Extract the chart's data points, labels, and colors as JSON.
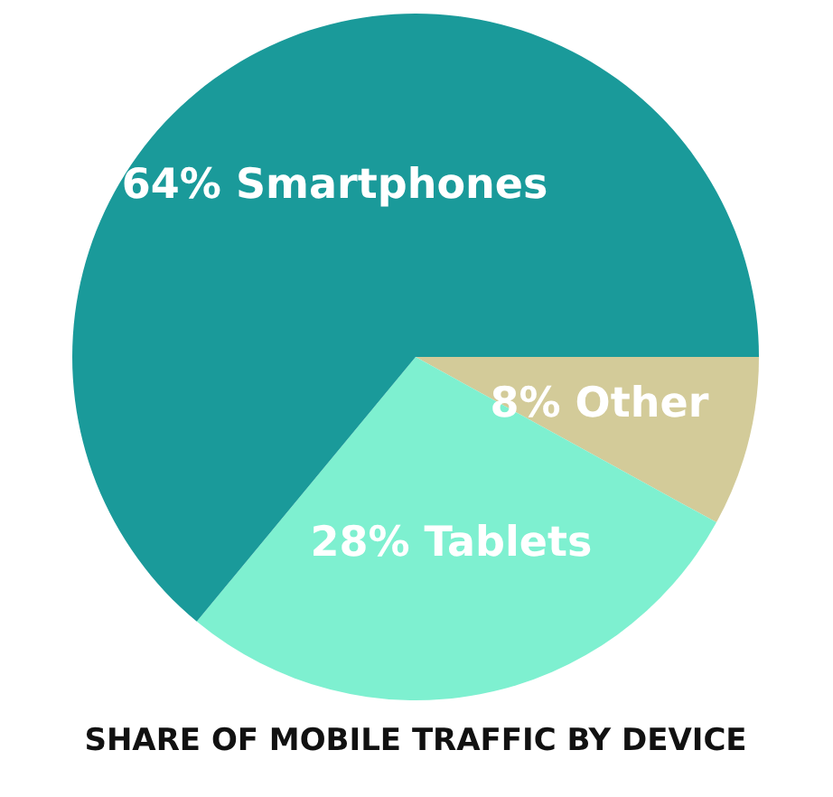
{
  "chart_data": {
    "type": "pie",
    "title": "SHARE OF MOBILE TRAFFIC BY DEVICE",
    "categories": [
      "Other",
      "Tablets",
      "Smartphones"
    ],
    "values": [
      8,
      28,
      64
    ],
    "colors": [
      "#d3cb99",
      "#7ef0d0",
      "#1a9a9a"
    ],
    "value_labels": [
      "8%",
      "28%",
      "64%"
    ],
    "legend": false
  }
}
